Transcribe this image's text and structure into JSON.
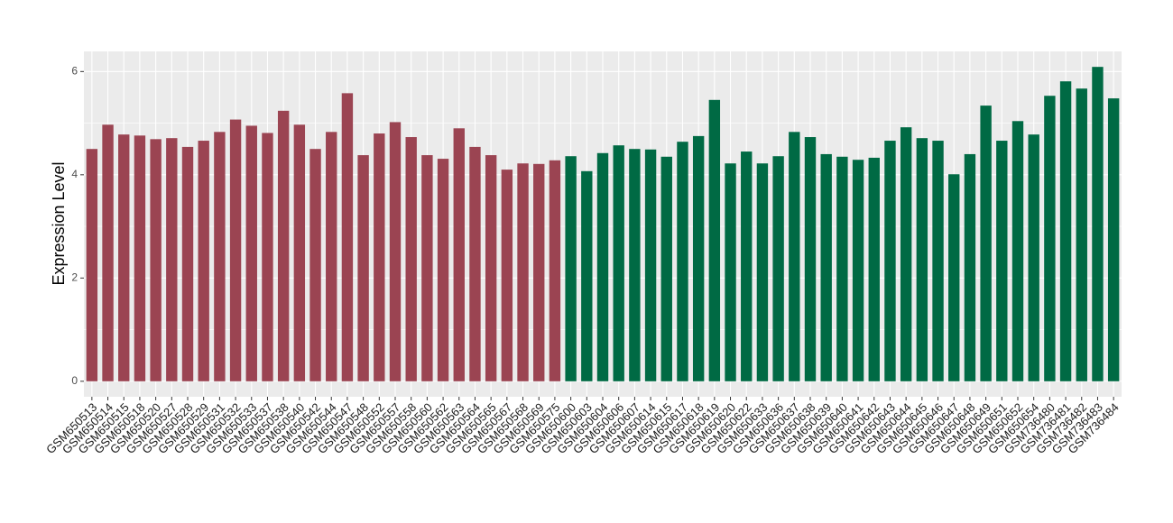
{
  "chart_data": {
    "type": "bar",
    "y_label": "Expression Level",
    "categories": [
      "GSM650513",
      "GSM650514",
      "GSM650515",
      "GSM650518",
      "GSM650520",
      "GSM650527",
      "GSM650528",
      "GSM650529",
      "GSM650531",
      "GSM650532",
      "GSM650533",
      "GSM650537",
      "GSM650538",
      "GSM650540",
      "GSM650542",
      "GSM650544",
      "GSM650547",
      "GSM650548",
      "GSM650552",
      "GSM650557",
      "GSM650558",
      "GSM650560",
      "GSM650562",
      "GSM650563",
      "GSM650564",
      "GSM650565",
      "GSM650567",
      "GSM650568",
      "GSM650569",
      "GSM650575",
      "GSM650600",
      "GSM650603",
      "GSM650604",
      "GSM650606",
      "GSM650607",
      "GSM650614",
      "GSM650615",
      "GSM650617",
      "GSM650618",
      "GSM650619",
      "GSM650620",
      "GSM650622",
      "GSM650633",
      "GSM650636",
      "GSM650637",
      "GSM650638",
      "GSM650639",
      "GSM650640",
      "GSM650641",
      "GSM650642",
      "GSM650643",
      "GSM650644",
      "GSM650645",
      "GSM650646",
      "GSM650647",
      "GSM650648",
      "GSM650649",
      "GSM650651",
      "GSM650652",
      "GSM650654",
      "GSM736480",
      "GSM736481",
      "GSM736482",
      "GSM736483",
      "GSM736484"
    ],
    "values": [
      4.5,
      4.97,
      4.78,
      4.76,
      4.69,
      4.71,
      4.54,
      4.66,
      4.83,
      5.07,
      4.95,
      4.81,
      5.24,
      4.97,
      4.5,
      4.83,
      5.58,
      4.38,
      4.8,
      5.02,
      4.73,
      4.38,
      4.31,
      4.9,
      4.54,
      4.38,
      4.1,
      4.22,
      4.21,
      4.28,
      4.36,
      4.07,
      4.42,
      4.57,
      4.5,
      4.49,
      4.35,
      4.64,
      4.75,
      5.45,
      4.22,
      4.45,
      4.22,
      4.36,
      4.83,
      4.73,
      4.4,
      4.35,
      4.29,
      4.33,
      4.66,
      4.92,
      4.71,
      4.66,
      4.01,
      4.4,
      5.34,
      4.66,
      5.04,
      4.78,
      5.53,
      5.81,
      5.67,
      6.09,
      5.48
    ],
    "colors": [
      "#9b4452",
      "#9b4452",
      "#9b4452",
      "#9b4452",
      "#9b4452",
      "#9b4452",
      "#9b4452",
      "#9b4452",
      "#9b4452",
      "#9b4452",
      "#9b4452",
      "#9b4452",
      "#9b4452",
      "#9b4452",
      "#9b4452",
      "#9b4452",
      "#9b4452",
      "#9b4452",
      "#9b4452",
      "#9b4452",
      "#9b4452",
      "#9b4452",
      "#9b4452",
      "#9b4452",
      "#9b4452",
      "#9b4452",
      "#9b4452",
      "#9b4452",
      "#9b4452",
      "#9b4452",
      "#006a44",
      "#006a44",
      "#006a44",
      "#006a44",
      "#006a44",
      "#006a44",
      "#006a44",
      "#006a44",
      "#006a44",
      "#006a44",
      "#006a44",
      "#006a44",
      "#006a44",
      "#006a44",
      "#006a44",
      "#006a44",
      "#006a44",
      "#006a44",
      "#006a44",
      "#006a44",
      "#006a44",
      "#006a44",
      "#006a44",
      "#006a44",
      "#006a44",
      "#006a44",
      "#006a44",
      "#006a44",
      "#006a44",
      "#006a44",
      "#006a44",
      "#006a44",
      "#006a44",
      "#006a44",
      "#006a44"
    ],
    "ylim": [
      -0.3,
      6.39
    ],
    "yticks": [
      0,
      2,
      4,
      6
    ],
    "grid": true
  }
}
